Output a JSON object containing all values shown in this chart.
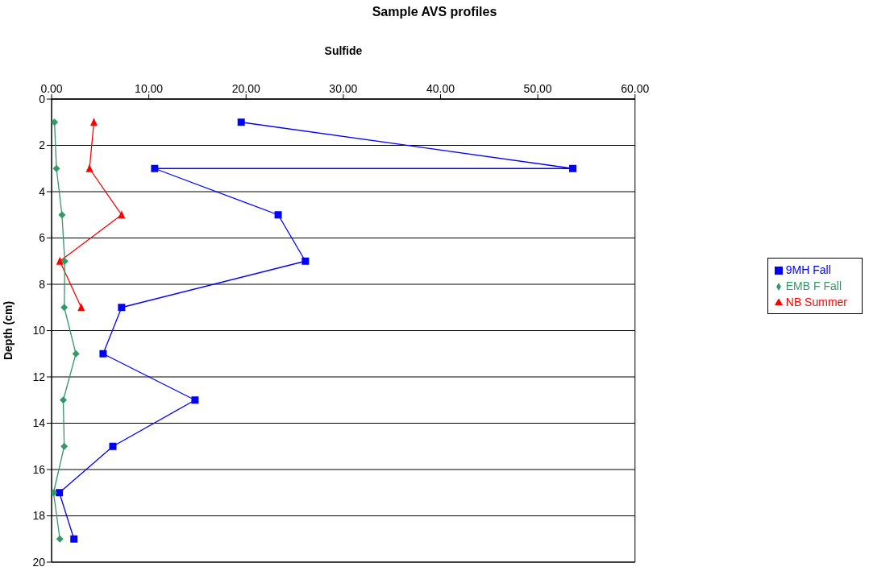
{
  "chart_data": {
    "type": "line",
    "title": "Sample AVS profiles",
    "xlabel": "Sulfide",
    "ylabel": "Depth (cm)",
    "xlim": [
      0,
      60
    ],
    "xticks": [
      {
        "value": 0,
        "label": "0.00"
      },
      {
        "value": 10,
        "label": "10.00"
      },
      {
        "value": 20,
        "label": "20.00"
      },
      {
        "value": 30,
        "label": "30.00"
      },
      {
        "value": 40,
        "label": "40.00"
      },
      {
        "value": 50,
        "label": "50.00"
      },
      {
        "value": 60,
        "label": "60.00"
      }
    ],
    "ylim": [
      20,
      0
    ],
    "yticks": [
      0,
      2,
      4,
      6,
      8,
      10,
      12,
      14,
      16,
      18,
      20
    ],
    "grid": "y",
    "legend": "right",
    "series": [
      {
        "name": "9MH Fall",
        "color": "#0000ff",
        "marker": "square",
        "x": [
          19.5,
          53.6,
          10.6,
          23.3,
          26.1,
          7.2,
          5.3,
          14.75,
          6.3,
          0.8,
          2.3
        ],
        "values": [
          1,
          3,
          3,
          5,
          7,
          9,
          11,
          13,
          15,
          17,
          19
        ]
      },
      {
        "name": "NB Summer",
        "color": "#ff0000",
        "marker": "triangle",
        "x": [
          4.35,
          3.9,
          7.2,
          0.85,
          3.05
        ],
        "values": [
          1,
          3,
          5,
          7,
          9
        ]
      },
      {
        "name": "EMB F Fall",
        "color": "#339966",
        "marker": "diamond",
        "x": [
          0.3,
          0.5,
          1.07,
          1.35,
          1.3,
          2.5,
          1.2,
          1.3,
          0.2,
          0.85
        ],
        "values": [
          1,
          3,
          5,
          7,
          9,
          11,
          13,
          15,
          17,
          19
        ]
      }
    ]
  }
}
